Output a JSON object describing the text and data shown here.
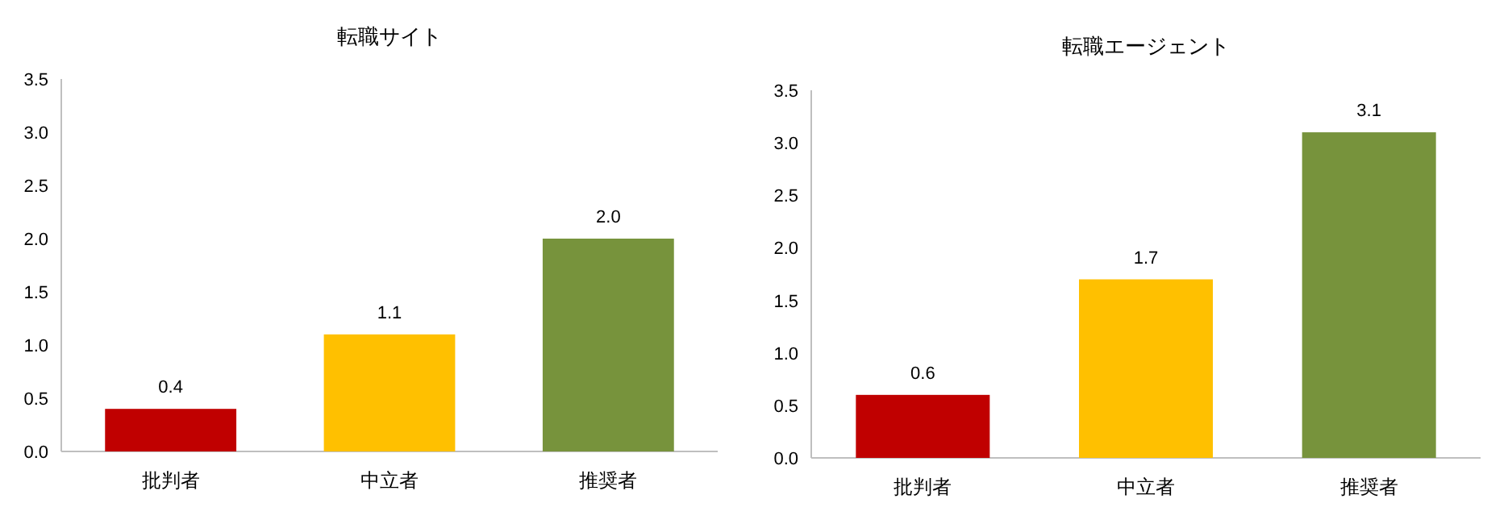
{
  "chart_data": [
    {
      "type": "bar",
      "title": "転職サイト",
      "categories": [
        "批判者",
        "中立者",
        "推奨者"
      ],
      "values": [
        0.4,
        1.1,
        2.0
      ],
      "colors": [
        "#c00000",
        "#ffc000",
        "#77933c"
      ],
      "value_labels": [
        "0.4",
        "1.1",
        "2.0"
      ],
      "ylim": [
        0,
        3.5
      ],
      "yticks": [
        {
          "value": 0,
          "label": "0.0"
        },
        {
          "value": 0.5,
          "label": "0.5"
        },
        {
          "value": 1,
          "label": "1.0"
        },
        {
          "value": 1.5,
          "label": "1.5"
        },
        {
          "value": 2,
          "label": "2.0"
        },
        {
          "value": 2.5,
          "label": "2.5"
        },
        {
          "value": 3,
          "label": "3.0"
        },
        {
          "value": 3.5,
          "label": "3.5"
        }
      ],
      "grid": false
    },
    {
      "type": "bar",
      "title": "転職エージェント",
      "categories": [
        "批判者",
        "中立者",
        "推奨者"
      ],
      "values": [
        0.6,
        1.7,
        3.1
      ],
      "colors": [
        "#c00000",
        "#ffc000",
        "#77933c"
      ],
      "value_labels": [
        "0.6",
        "1.7",
        "3.1"
      ],
      "ylim": [
        0,
        3.5
      ],
      "yticks": [
        {
          "value": 0,
          "label": "0.0"
        },
        {
          "value": 0.5,
          "label": "0.5"
        },
        {
          "value": 1,
          "label": "1.0"
        },
        {
          "value": 1.5,
          "label": "1.5"
        },
        {
          "value": 2,
          "label": "2.0"
        },
        {
          "value": 2.5,
          "label": "2.5"
        },
        {
          "value": 3,
          "label": "3.0"
        },
        {
          "value": 3.5,
          "label": "3.5"
        }
      ],
      "grid": false
    }
  ]
}
